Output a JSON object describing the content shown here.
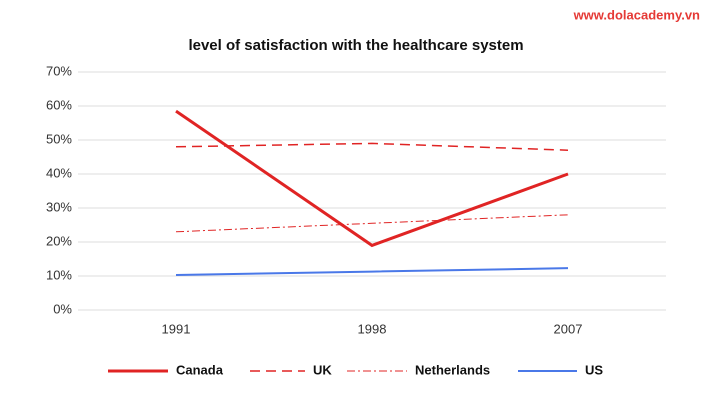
{
  "chart_data": {
    "type": "line",
    "title": "level of satisfaction with the healthcare system",
    "watermark": "www.dolacademy.vn",
    "categories": [
      "1991",
      "1998",
      "2007"
    ],
    "series": [
      {
        "name": "Canada",
        "color": "#e02424",
        "dash": "solid",
        "width": 3,
        "values": [
          58.5,
          19,
          40
        ]
      },
      {
        "name": "UK",
        "color": "#e02424",
        "dash": "dashed",
        "width": 1.5,
        "values": [
          48,
          49,
          47
        ]
      },
      {
        "name": "Netherlands",
        "color": "#e02424",
        "dash": "dashdot",
        "width": 1,
        "values": [
          23,
          25.5,
          28
        ]
      },
      {
        "name": "US",
        "color": "#4a78e8",
        "dash": "solid",
        "width": 2,
        "values": [
          10.3,
          11.3,
          12.3
        ]
      }
    ],
    "ylim": [
      0,
      70
    ],
    "yticks": [
      {
        "value": 0,
        "label": "0%"
      },
      {
        "value": 10,
        "label": "10%"
      },
      {
        "value": 20,
        "label": "20%"
      },
      {
        "value": 30,
        "label": "30%"
      },
      {
        "value": 40,
        "label": "40%"
      },
      {
        "value": 50,
        "label": "50%"
      },
      {
        "value": 60,
        "label": "60%"
      },
      {
        "value": 70,
        "label": "70%"
      }
    ],
    "grid": true,
    "legend": "bottom"
  }
}
